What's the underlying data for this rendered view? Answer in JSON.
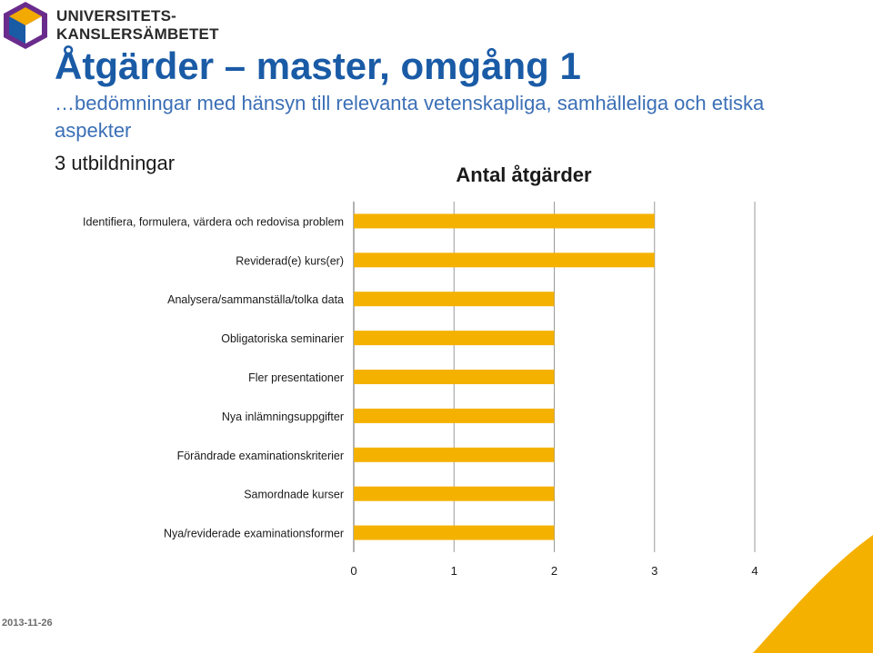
{
  "logo": {
    "line1": "UNIVERSITETS-",
    "line2": "KANSLERSÄMBETET",
    "mark_colors": [
      "#f2a900",
      "#6a2c8c",
      "#1a5ba6",
      "#ffffff"
    ]
  },
  "header": {
    "title": "Åtgärder – master, omgång 1",
    "subtitle": "…bedömningar med hänsyn till relevanta vetenskapliga, samhälleliga och etiska aspekter",
    "count_label": "3 utbildningar"
  },
  "chart_data": {
    "type": "bar",
    "orientation": "horizontal",
    "title": "Antal åtgärder",
    "xlabel": "",
    "ylabel": "",
    "categories": [
      "Identifiera, formulera, värdera och redovisa problem",
      "Reviderad(e) kurs(er)",
      "Analysera/sammanställa/tolka data",
      "Obligatoriska seminarier",
      "Fler presentationer",
      "Nya inlämningsuppgifter",
      "Förändrade examinationskriterier",
      "Samordnade kurser",
      "Nya/reviderade examinationsformer"
    ],
    "values": [
      3,
      3,
      2,
      2,
      2,
      2,
      2,
      2,
      2
    ],
    "xlim": [
      0,
      4
    ],
    "xticks": [
      "0",
      "1",
      "2",
      "3",
      "4"
    ],
    "grid": "vertical",
    "bar_color": "#f5b100"
  },
  "footer": {
    "date": "2013-11-26",
    "deco_color": "#f5b100"
  }
}
